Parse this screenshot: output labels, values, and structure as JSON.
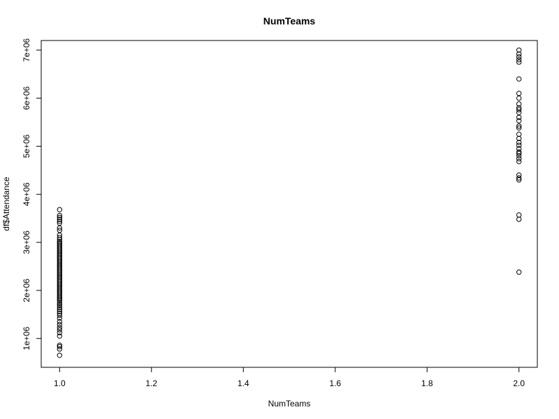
{
  "chart_data": {
    "type": "scatter",
    "title": "NumTeams",
    "xlabel": "NumTeams",
    "ylabel": "df$Attendance",
    "xlim": [
      0.96,
      2.04
    ],
    "ylim": [
      400000,
      7200000
    ],
    "x_ticks": [
      1.0,
      1.2,
      1.4,
      1.6,
      1.8,
      2.0
    ],
    "x_tick_labels": [
      "1.0",
      "1.2",
      "1.4",
      "1.6",
      "1.8",
      "2.0"
    ],
    "y_ticks": [
      1000000,
      2000000,
      3000000,
      4000000,
      5000000,
      6000000,
      7000000
    ],
    "y_tick_labels": [
      "1e+06",
      "2e+06",
      "3e+06",
      "4e+06",
      "5e+06",
      "6e+06",
      "7e+06"
    ],
    "grid": false,
    "legend": "none",
    "marker": "open-circle",
    "marker_color": "#000000",
    "series": [
      {
        "x_value": 1.0,
        "y_values": [
          650000,
          780000,
          830000,
          860000,
          1050000,
          1120000,
          1180000,
          1230000,
          1290000,
          1350000,
          1420000,
          1480000,
          1520000,
          1560000,
          1600000,
          1640000,
          1680000,
          1710000,
          1750000,
          1790000,
          1820000,
          1850000,
          1880000,
          1910000,
          1940000,
          1970000,
          2000000,
          2030000,
          2060000,
          2090000,
          2120000,
          2150000,
          2180000,
          2210000,
          2240000,
          2270000,
          2300000,
          2330000,
          2360000,
          2390000,
          2420000,
          2450000,
          2480000,
          2510000,
          2540000,
          2570000,
          2600000,
          2630000,
          2660000,
          2690000,
          2720000,
          2750000,
          2780000,
          2810000,
          2840000,
          2870000,
          2900000,
          2930000,
          2960000,
          2990000,
          3020000,
          3060000,
          3100000,
          3150000,
          3250000,
          3300000,
          3400000,
          3440000,
          3480000,
          3520000,
          3560000,
          3680000
        ]
      },
      {
        "x_value": 2.0,
        "y_values": [
          2380000,
          3480000,
          3570000,
          4300000,
          4340000,
          4400000,
          4680000,
          4740000,
          4800000,
          4850000,
          4880000,
          4950000,
          5020000,
          5080000,
          5160000,
          5250000,
          5380000,
          5420000,
          5530000,
          5600000,
          5700000,
          5760000,
          5800000,
          5880000,
          6000000,
          6100000,
          6400000,
          6750000,
          6800000,
          6860000,
          6920000,
          7000000
        ]
      }
    ]
  }
}
